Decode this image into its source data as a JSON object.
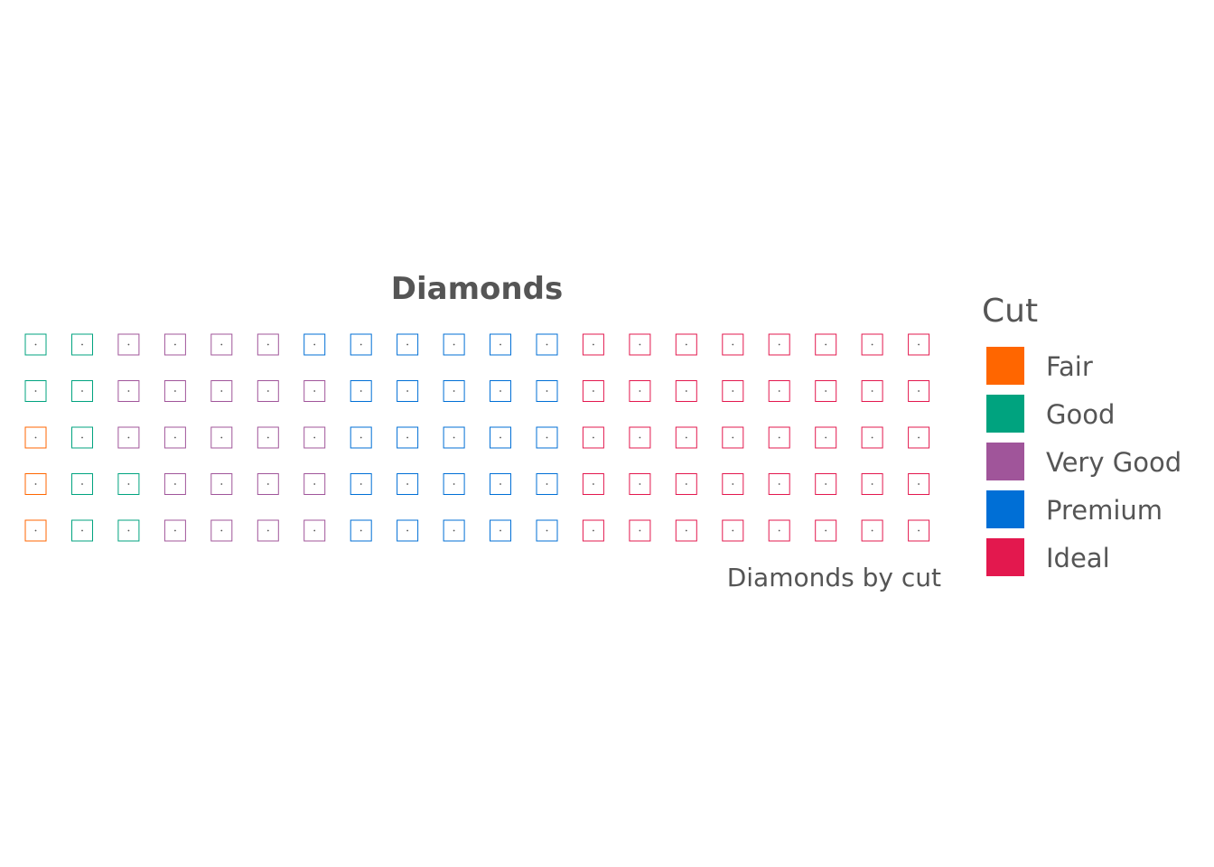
{
  "chart_data": {
    "type": "waffle",
    "title": "Diamonds",
    "caption": "Diamonds by cut",
    "rows": 5,
    "columns": 20,
    "categories": [
      "Fair",
      "Good",
      "Very Good",
      "Premium",
      "Ideal"
    ],
    "values": [
      3,
      9,
      22,
      26,
      40
    ],
    "colors": [
      "#FF6600",
      "#00A37F",
      "#A0559A",
      "#006FD6",
      "#E3184E"
    ],
    "legend": {
      "title": "Cut",
      "position": "right"
    }
  }
}
